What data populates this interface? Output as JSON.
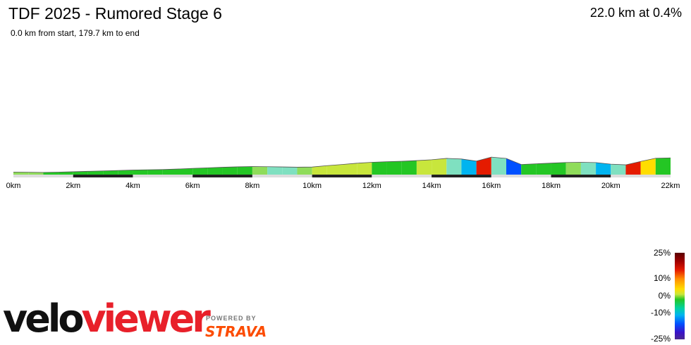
{
  "header": {
    "title": "TDF 2025 - Rumored Stage 6",
    "subtitle": "0.0 km from start, 179.7 km to end",
    "summary": "22.0 km at 0.4%"
  },
  "legend": {
    "labels": [
      "25%",
      "10%",
      "0%",
      "-10%",
      "-25%"
    ]
  },
  "branding": {
    "logo_part_a": "velo",
    "logo_part_b": "viewer",
    "powered_by": "POWERED BY",
    "strava": "STRAVA"
  },
  "colors": {
    "fill_default": "#24c624",
    "fill_flat": "#8fdc5a",
    "fill_gentle_up": "#c8e63c",
    "fill_moderate_up": "#ffdd00",
    "fill_steep_up": "#e51b00",
    "fill_very_steep_up": "#8b0000",
    "fill_gentle_down": "#7fe0c0",
    "fill_moderate_down": "#00b4f0",
    "fill_steep_down": "#0050ff",
    "axis_bar_light": "#dddddd",
    "axis_bar_dark": "#222222",
    "outline": "#555555"
  },
  "chart_data": {
    "type": "area",
    "title": "TDF 2025 - Rumored Stage 6",
    "xlabel": "",
    "ylabel": "",
    "x_unit": "km",
    "xlim": [
      0,
      22
    ],
    "x_ticks": [
      0,
      2,
      4,
      6,
      8,
      10,
      12,
      14,
      16,
      18,
      20,
      22
    ],
    "x_tick_labels": [
      "0km",
      "2km",
      "4km",
      "6km",
      "8km",
      "10km",
      "12km",
      "14km",
      "16km",
      "18km",
      "20km",
      "22km"
    ],
    "total_distance_km": 22.0,
    "average_grade_pct": 0.4,
    "grade_scale_pct": [
      25,
      10,
      0,
      -10,
      -25
    ],
    "series": [
      {
        "x": [
          0,
          0.5,
          1.0,
          1.5,
          2.0,
          2.5,
          3.0,
          3.5,
          4.0,
          4.5,
          5.0,
          5.5,
          6.0,
          6.5,
          7.0,
          7.5,
          8.0,
          8.5,
          9.0,
          9.5,
          10.0,
          10.5,
          11.0,
          11.5,
          12.0,
          12.5,
          13.0,
          13.5,
          14.0,
          14.5,
          15.0,
          15.5,
          16.0,
          16.5,
          17.0,
          17.5,
          18.0,
          18.5,
          19.0,
          19.5,
          20.0,
          20.5,
          21.0,
          21.5,
          22.0
        ],
        "y": [
          3.0,
          2.8,
          2.6,
          2.9,
          3.4,
          3.9,
          4.4,
          4.9,
          5.4,
          5.7,
          6.0,
          6.6,
          7.4,
          8.0,
          8.7,
          9.2,
          9.6,
          9.4,
          9.1,
          8.8,
          9.0,
          10.6,
          12.0,
          13.5,
          14.6,
          15.3,
          15.8,
          16.6,
          17.6,
          19.2,
          18.5,
          16.0,
          20.7,
          19.2,
          12.0,
          12.8,
          13.6,
          14.4,
          14.6,
          14.3,
          12.4,
          11.6,
          15.6,
          19.4,
          19.8
        ],
        "grade_pct": [
          -0.4,
          -0.4,
          0.6,
          1.0,
          1.0,
          1.0,
          1.0,
          1.0,
          0.6,
          0.6,
          1.2,
          1.6,
          1.2,
          1.4,
          1.0,
          0.8,
          -0.4,
          -0.6,
          -0.6,
          0.4,
          3.2,
          2.8,
          3.0,
          2.2,
          1.4,
          1.0,
          1.6,
          2.0,
          3.2,
          -1.4,
          -5.0,
          9.4,
          -3.0,
          -14.4,
          1.6,
          1.6,
          1.6,
          0.4,
          -0.6,
          -3.8,
          -1.6,
          8.0,
          7.6,
          0.8
        ]
      }
    ]
  }
}
